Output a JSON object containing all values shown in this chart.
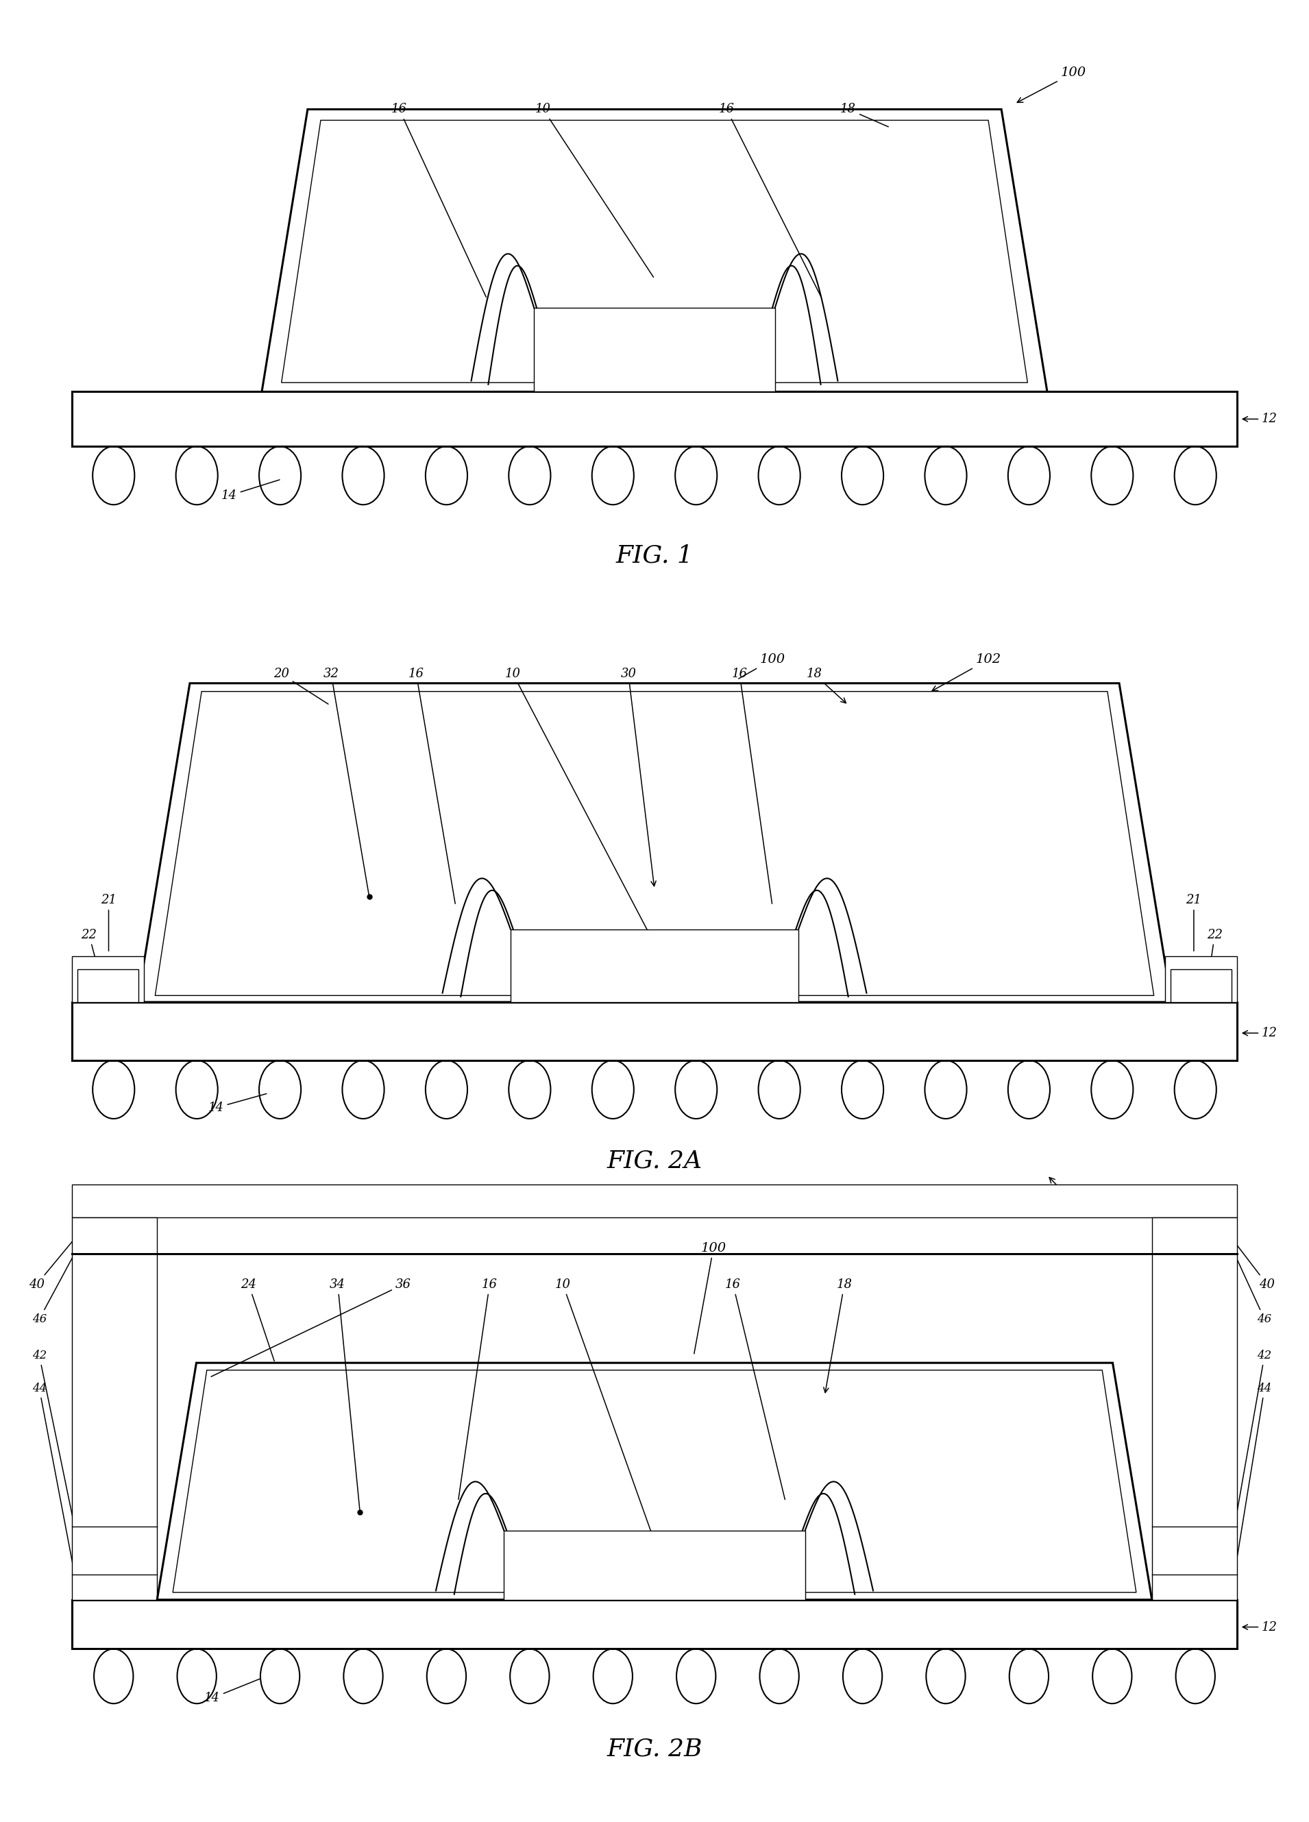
{
  "bg_color": "#ffffff",
  "line_color": "#000000",
  "lw": 1.5,
  "lw_thick": 2.2,
  "lw_thin": 1.0,
  "fig1_title": "FIG. 1",
  "fig2a_title": "FIG. 2A",
  "fig2b_title": "FIG. 2B"
}
